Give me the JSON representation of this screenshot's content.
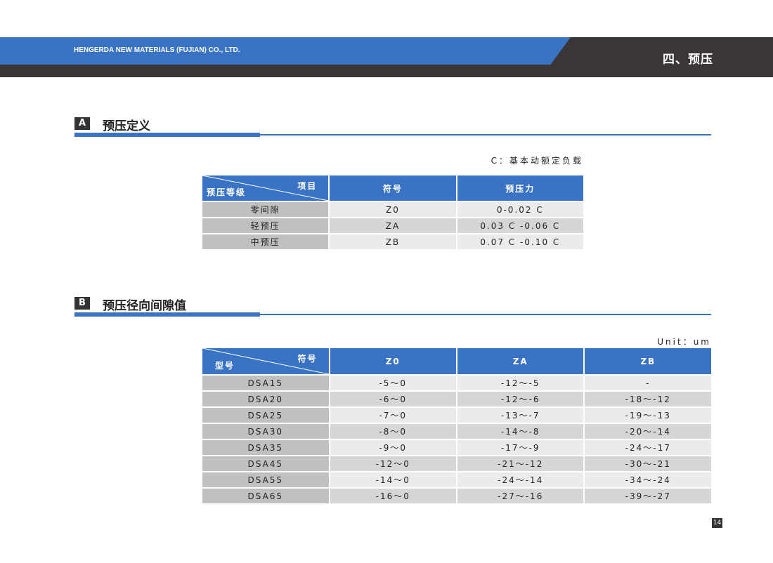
{
  "header": {
    "company": "HENGERDA NEW MATERIALS (FUJIAN) CO., LTD.",
    "chapter": "四、预压"
  },
  "section_a": {
    "letter": "A",
    "title": "预压定义",
    "note": "C：基本动额定负载",
    "table": {
      "corner_top": "项目",
      "corner_bottom": "预压等级",
      "headers": [
        "符号",
        "预压力"
      ],
      "rows": [
        [
          "零间隙",
          "Z0",
          "0-0.02 C"
        ],
        [
          "轻预压",
          "ZA",
          "0.03 C -0.06 C"
        ],
        [
          "中预压",
          "ZB",
          "0.07 C -0.10 C"
        ]
      ]
    }
  },
  "section_b": {
    "letter": "B",
    "title": "预压径向间隙值",
    "note": "Unit：um",
    "table": {
      "corner_top": "符号",
      "corner_bottom": "型号",
      "headers": [
        "Z0",
        "ZA",
        "ZB"
      ],
      "rows": [
        [
          "DSA15",
          "-5～0",
          "-12～-5",
          "-"
        ],
        [
          "DSA20",
          "-6～0",
          "-12～-6",
          "-18～-12"
        ],
        [
          "DSA25",
          "-7～0",
          "-13～-7",
          "-19～-13"
        ],
        [
          "DSA30",
          "-8～0",
          "-14～-8",
          "-20～-14"
        ],
        [
          "DSA35",
          "-9～0",
          "-17～-9",
          "-24～-17"
        ],
        [
          "DSA45",
          "-12～0",
          "-21～-12",
          "-30～-21"
        ],
        [
          "DSA55",
          "-14～0",
          "-24～-14",
          "-34～-24"
        ],
        [
          "DSA65",
          "-16～0",
          "-27～-16",
          "-39～-27"
        ]
      ]
    }
  },
  "page_number": "14"
}
